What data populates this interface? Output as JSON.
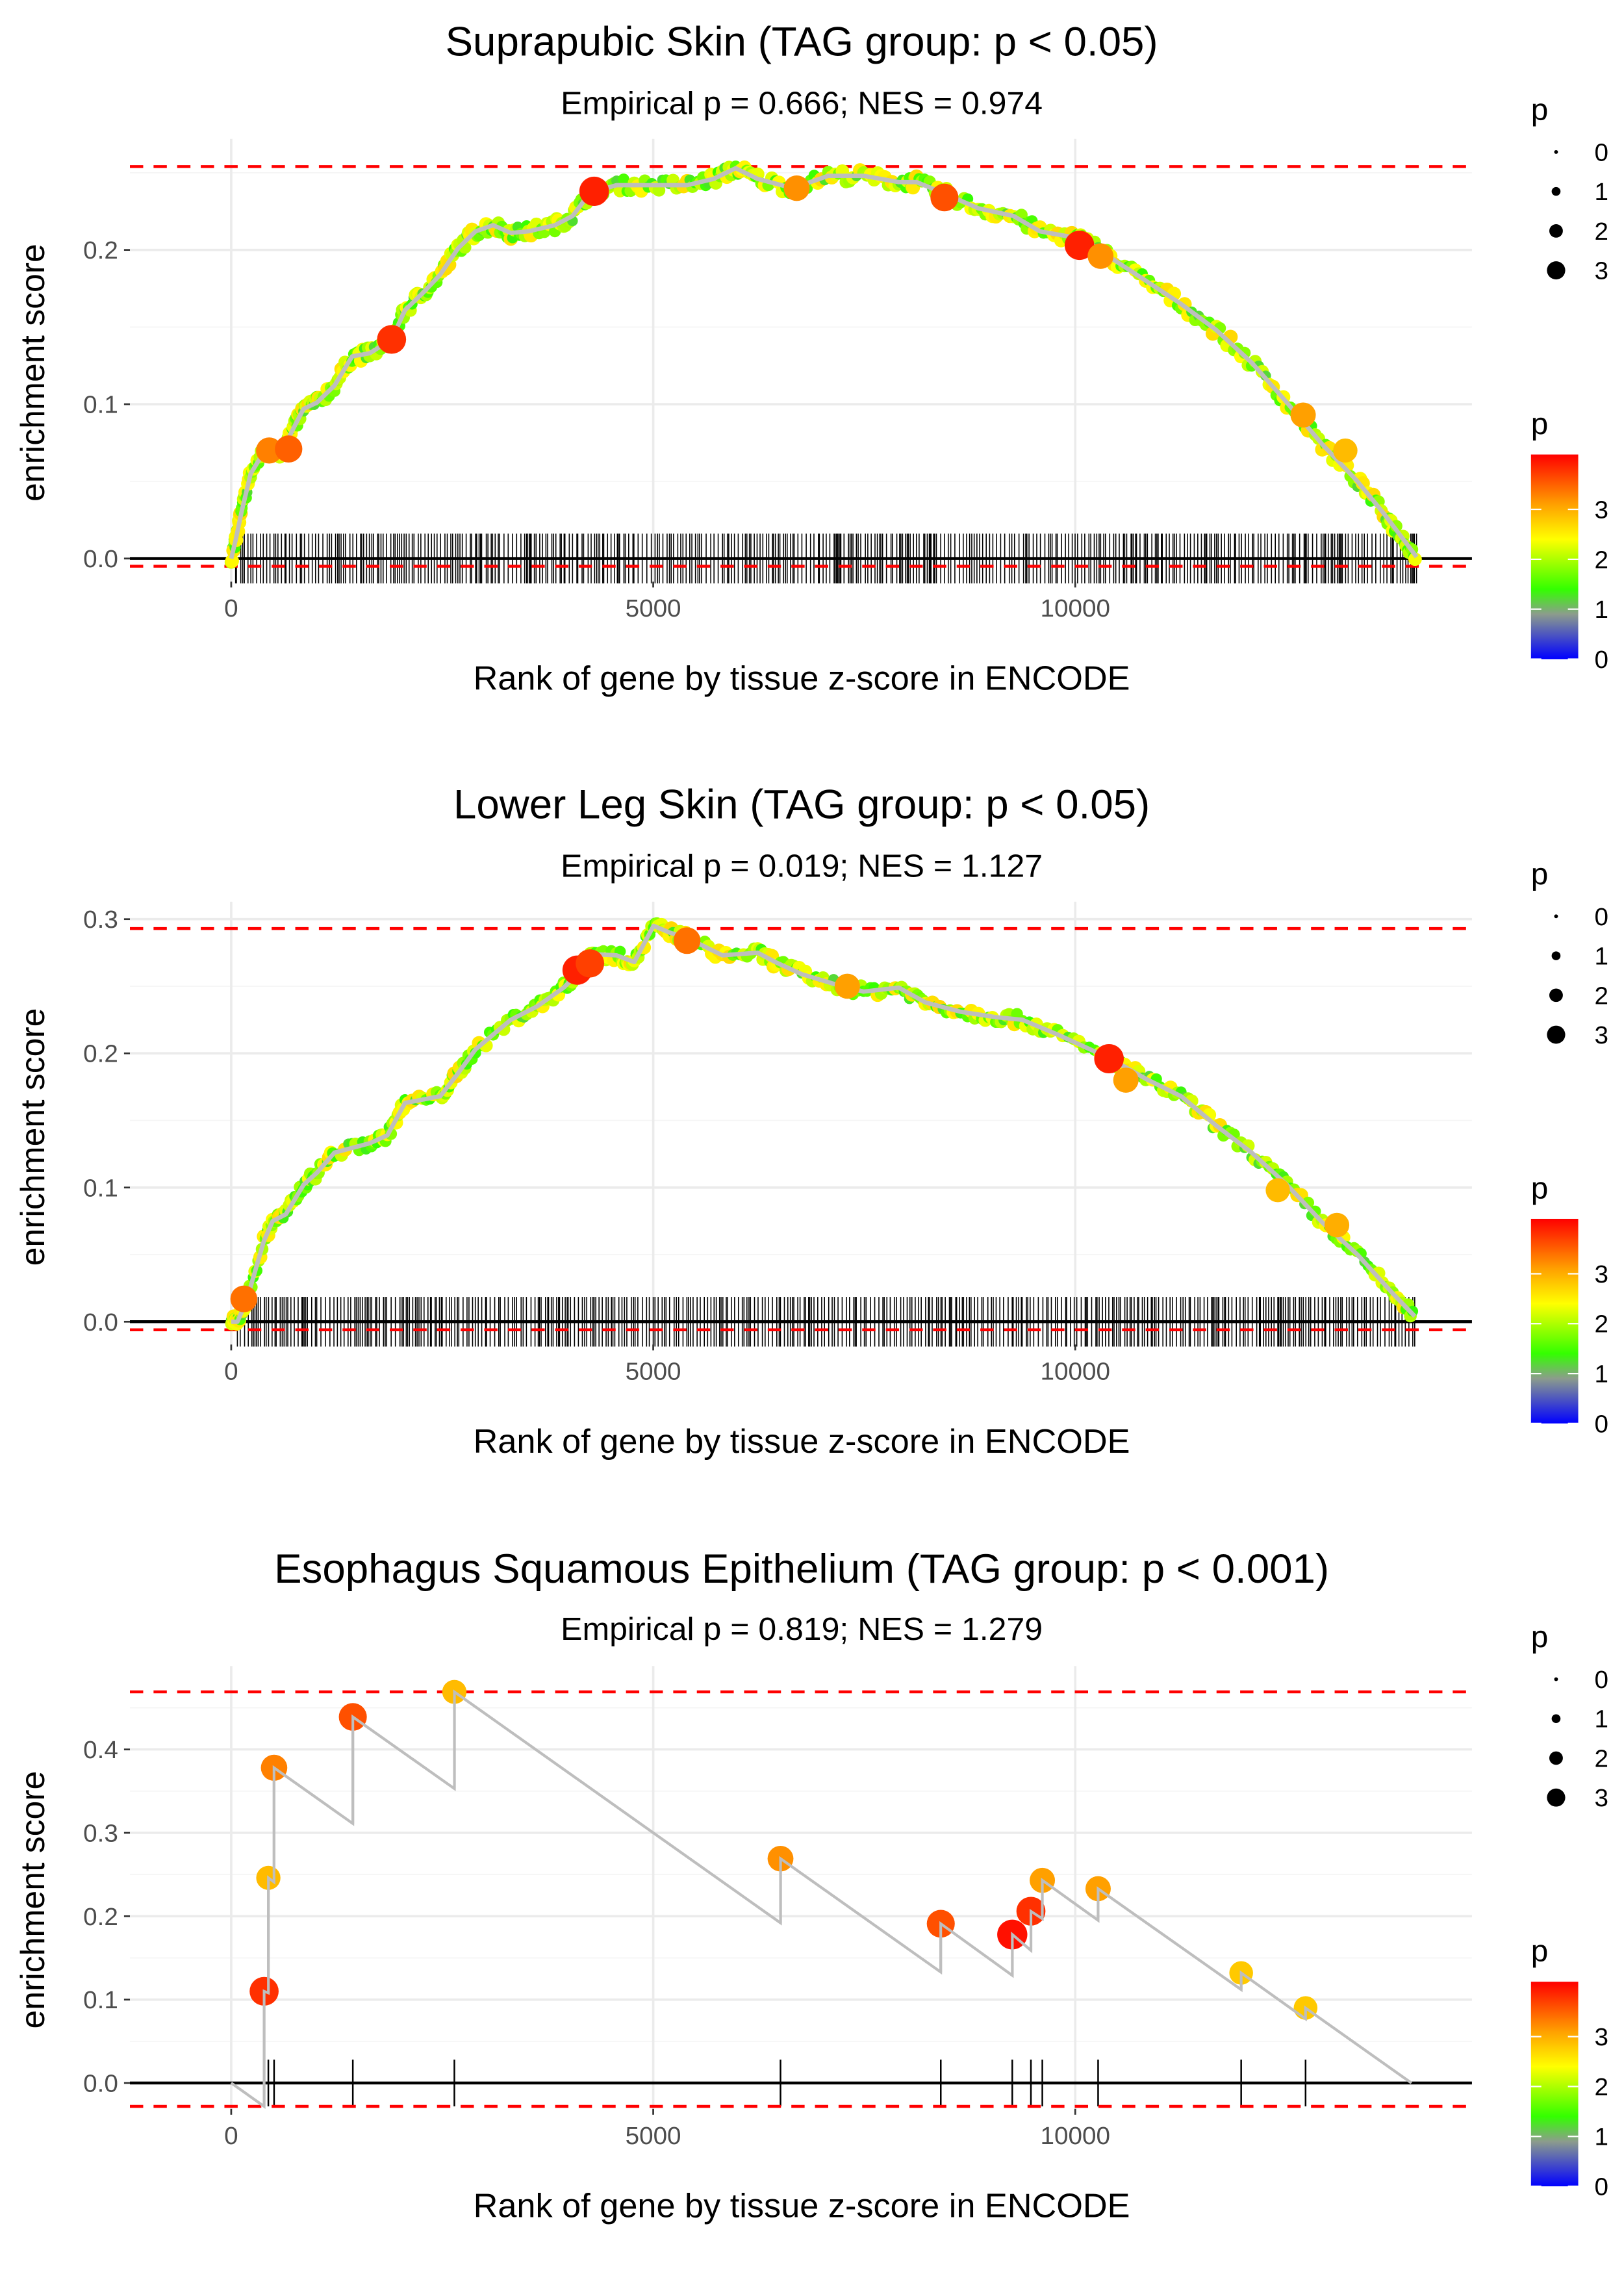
{
  "figure": {
    "x_axis_label": "Rank of gene by tissue z-score in ENCODE",
    "y_axis_label": "enrichment score",
    "legend_size_title": "p",
    "legend_color_title": "p",
    "legend_size_labels": [
      "0",
      "1",
      "2",
      "3"
    ],
    "legend_color_labels": [
      "3",
      "2",
      "1",
      "0"
    ]
  },
  "colors": {
    "max_min_line": "#ff0000",
    "zero_line": "#000000",
    "curve": "#bebebe",
    "rug": "#000000",
    "gradient": [
      {
        "p": 0.0,
        "color": "#0000ff"
      },
      {
        "p": 0.9,
        "color": "#8c9c8c"
      },
      {
        "p": 1.4,
        "color": "#33ff00"
      },
      {
        "p": 2.4,
        "color": "#ffff00"
      },
      {
        "p": 3.1,
        "color": "#ffa000"
      },
      {
        "p": 4.1,
        "color": "#ff0000"
      }
    ]
  },
  "chart_data": [
    {
      "type": "line",
      "title": "Suprapubic Skin (TAG group: p < 0.05)",
      "subtitle": "Empirical p = 0.666; NES = 0.974",
      "xlabel": "Rank of gene by tissue z-score in ENCODE",
      "ylabel": "enrichment score",
      "xlim": [
        -1200,
        14700
      ],
      "ylim": [
        -0.015,
        0.272
      ],
      "x_ticks": [
        0,
        5000,
        10000
      ],
      "x_tick_labels": [
        "0",
        "5000",
        "10000"
      ],
      "y_ticks": [
        0.0,
        0.1,
        0.2
      ],
      "y_tick_labels": [
        "0.0",
        "0.1",
        "0.2"
      ],
      "es_max": 0.254,
      "es_min": -0.005,
      "grid": true,
      "rug": "dense",
      "series": [
        {
          "name": "running enrichment score",
          "points": [
            [
              0,
              0.0
            ],
            [
              52,
              0.012
            ],
            [
              125,
              0.031
            ],
            [
              230,
              0.055
            ],
            [
              387,
              0.069
            ],
            [
              596,
              0.069
            ],
            [
              752,
              0.086
            ],
            [
              857,
              0.097
            ],
            [
              1014,
              0.101
            ],
            [
              1223,
              0.112
            ],
            [
              1432,
              0.131
            ],
            [
              1641,
              0.133
            ],
            [
              1902,
              0.142
            ],
            [
              2059,
              0.161
            ],
            [
              2268,
              0.172
            ],
            [
              2477,
              0.184
            ],
            [
              2686,
              0.201
            ],
            [
              2894,
              0.212
            ],
            [
              3103,
              0.216
            ],
            [
              3312,
              0.211
            ],
            [
              3521,
              0.212
            ],
            [
              3835,
              0.216
            ],
            [
              4044,
              0.222
            ],
            [
              4253,
              0.237
            ],
            [
              4566,
              0.242
            ],
            [
              4984,
              0.242
            ],
            [
              5402,
              0.242
            ],
            [
              5716,
              0.246
            ],
            [
              5977,
              0.253
            ],
            [
              6238,
              0.246
            ],
            [
              6656,
              0.24
            ],
            [
              7074,
              0.248
            ],
            [
              7492,
              0.248
            ],
            [
              7910,
              0.244
            ],
            [
              8119,
              0.244
            ],
            [
              8433,
              0.237
            ],
            [
              8851,
              0.227
            ],
            [
              9269,
              0.222
            ],
            [
              9582,
              0.212
            ],
            [
              10000,
              0.208
            ],
            [
              10209,
              0.203
            ],
            [
              10418,
              0.195
            ],
            [
              10836,
              0.18
            ],
            [
              11254,
              0.165
            ],
            [
              11672,
              0.148
            ],
            [
              12090,
              0.127
            ],
            [
              12508,
              0.101
            ],
            [
              12926,
              0.074
            ],
            [
              13344,
              0.05
            ],
            [
              13657,
              0.029
            ],
            [
              13866,
              0.014
            ],
            [
              14044,
              0.001
            ]
          ]
        },
        {
          "name": "highlighted genes",
          "markers": [
            [
              450,
              0.07,
              3.3
            ],
            [
              680,
              0.071,
              3.5
            ],
            [
              1900,
              0.142,
              3.8
            ],
            [
              4300,
              0.238,
              3.9
            ],
            [
              6700,
              0.24,
              3.2
            ],
            [
              8450,
              0.234,
              3.6
            ],
            [
              10050,
              0.203,
              3.9
            ],
            [
              10300,
              0.196,
              3.2
            ],
            [
              12700,
              0.093,
              3.1
            ],
            [
              13200,
              0.07,
              2.9
            ]
          ]
        }
      ]
    },
    {
      "type": "line",
      "title": "Lower Leg Skin (TAG group: p < 0.05)",
      "subtitle": "Empirical p = 0.019; NES = 1.127",
      "xlabel": "Rank of gene by tissue z-score in ENCODE",
      "ylabel": "enrichment score",
      "xlim": [
        -1200,
        14700
      ],
      "ylim": [
        -0.017,
        0.313
      ],
      "x_ticks": [
        0,
        5000,
        10000
      ],
      "x_tick_labels": [
        "0",
        "5000",
        "10000"
      ],
      "y_ticks": [
        0.0,
        0.1,
        0.2,
        0.3
      ],
      "y_tick_labels": [
        "0.0",
        "0.1",
        "0.2",
        "0.3"
      ],
      "es_max": 0.293,
      "es_min": -0.006,
      "grid": true,
      "rug": "dense",
      "series": [
        {
          "name": "running enrichment score",
          "points": [
            [
              0,
              0.0
            ],
            [
              73,
              0.0
            ],
            [
              178,
              0.015
            ],
            [
              387,
              0.06
            ],
            [
              491,
              0.075
            ],
            [
              648,
              0.08
            ],
            [
              857,
              0.102
            ],
            [
              1014,
              0.111
            ],
            [
              1223,
              0.126
            ],
            [
              1641,
              0.133
            ],
            [
              1850,
              0.139
            ],
            [
              2059,
              0.163
            ],
            [
              2477,
              0.168
            ],
            [
              2686,
              0.185
            ],
            [
              2894,
              0.203
            ],
            [
              3312,
              0.225
            ],
            [
              3626,
              0.235
            ],
            [
              3939,
              0.249
            ],
            [
              4148,
              0.262
            ],
            [
              4253,
              0.274
            ],
            [
              4566,
              0.273
            ],
            [
              4775,
              0.268
            ],
            [
              5005,
              0.295
            ],
            [
              5193,
              0.29
            ],
            [
              5402,
              0.286
            ],
            [
              5820,
              0.273
            ],
            [
              6238,
              0.275
            ],
            [
              6447,
              0.268
            ],
            [
              6760,
              0.259
            ],
            [
              7179,
              0.251
            ],
            [
              7492,
              0.246
            ],
            [
              7910,
              0.249
            ],
            [
              8224,
              0.238
            ],
            [
              8642,
              0.231
            ],
            [
              9060,
              0.227
            ],
            [
              9373,
              0.225
            ],
            [
              9791,
              0.214
            ],
            [
              10418,
              0.196
            ],
            [
              10836,
              0.181
            ],
            [
              11254,
              0.168
            ],
            [
              11672,
              0.146
            ],
            [
              12090,
              0.126
            ],
            [
              12508,
              0.102
            ],
            [
              12926,
              0.074
            ],
            [
              13344,
              0.05
            ],
            [
              13762,
              0.021
            ],
            [
              14023,
              0.004
            ]
          ]
        },
        {
          "name": "highlighted genes",
          "markers": [
            [
              150,
              0.017,
              3.4
            ],
            [
              4100,
              0.262,
              3.9
            ],
            [
              4250,
              0.267,
              3.7
            ],
            [
              5400,
              0.284,
              3.4
            ],
            [
              7300,
              0.25,
              3.1
            ],
            [
              10400,
              0.196,
              3.9
            ],
            [
              10600,
              0.18,
              3.1
            ],
            [
              12400,
              0.098,
              2.9
            ],
            [
              13100,
              0.072,
              3.0
            ]
          ]
        }
      ]
    },
    {
      "type": "line",
      "title": "Esophagus Squamous Epithelium (TAG group: p < 0.001)",
      "subtitle": "Empirical p = 0.819; NES = 1.279",
      "xlabel": "Rank of gene by tissue z-score in ENCODE",
      "ylabel": "enrichment score",
      "xlim": [
        -1200,
        14700
      ],
      "ylim": [
        -0.031,
        0.5
      ],
      "x_ticks": [
        0,
        5000,
        10000
      ],
      "x_tick_labels": [
        "0",
        "5000",
        "10000"
      ],
      "y_ticks": [
        0.0,
        0.1,
        0.2,
        0.3,
        0.4
      ],
      "y_tick_labels": [
        "0.0",
        "0.1",
        "0.2",
        "0.3",
        "0.4"
      ],
      "es_max": 0.469,
      "es_min": -0.028,
      "grid": true,
      "rug": "sparse",
      "series": [
        {
          "name": "running enrichment score",
          "points": [
            [
              0,
              0.0
            ],
            [
              390,
              -0.028
            ],
            [
              390,
              0.11
            ],
            [
              440,
              0.108
            ],
            [
              440,
              0.246
            ],
            [
              508,
              0.241
            ],
            [
              508,
              0.378
            ],
            [
              1441,
              0.311
            ],
            [
              1441,
              0.439
            ],
            [
              2644,
              0.353
            ],
            [
              2644,
              0.469
            ],
            [
              6508,
              0.192
            ],
            [
              6508,
              0.269
            ],
            [
              8407,
              0.133
            ],
            [
              8407,
              0.191
            ],
            [
              9254,
              0.129
            ],
            [
              9254,
              0.178
            ],
            [
              9475,
              0.159
            ],
            [
              9475,
              0.206
            ],
            [
              9610,
              0.197
            ],
            [
              9610,
              0.243
            ],
            [
              10271,
              0.195
            ],
            [
              10271,
              0.233
            ],
            [
              11966,
              0.112
            ],
            [
              11966,
              0.132
            ],
            [
              12729,
              0.077
            ],
            [
              12729,
              0.09
            ],
            [
              13983,
              0.0
            ]
          ]
        },
        {
          "name": "hit genes",
          "markers": [
            [
              390,
              0.11,
              3.8
            ],
            [
              440,
              0.246,
              2.9
            ],
            [
              508,
              0.378,
              3.3
            ],
            [
              1441,
              0.439,
              3.6
            ],
            [
              2644,
              0.469,
              2.9
            ],
            [
              6508,
              0.269,
              3.2
            ],
            [
              8407,
              0.191,
              3.6
            ],
            [
              9254,
              0.178,
              4.0
            ],
            [
              9475,
              0.206,
              3.8
            ],
            [
              9610,
              0.243,
              3.1
            ],
            [
              10271,
              0.233,
              3.1
            ],
            [
              11966,
              0.132,
              2.8
            ],
            [
              12729,
              0.09,
              2.8
            ]
          ]
        }
      ]
    }
  ]
}
